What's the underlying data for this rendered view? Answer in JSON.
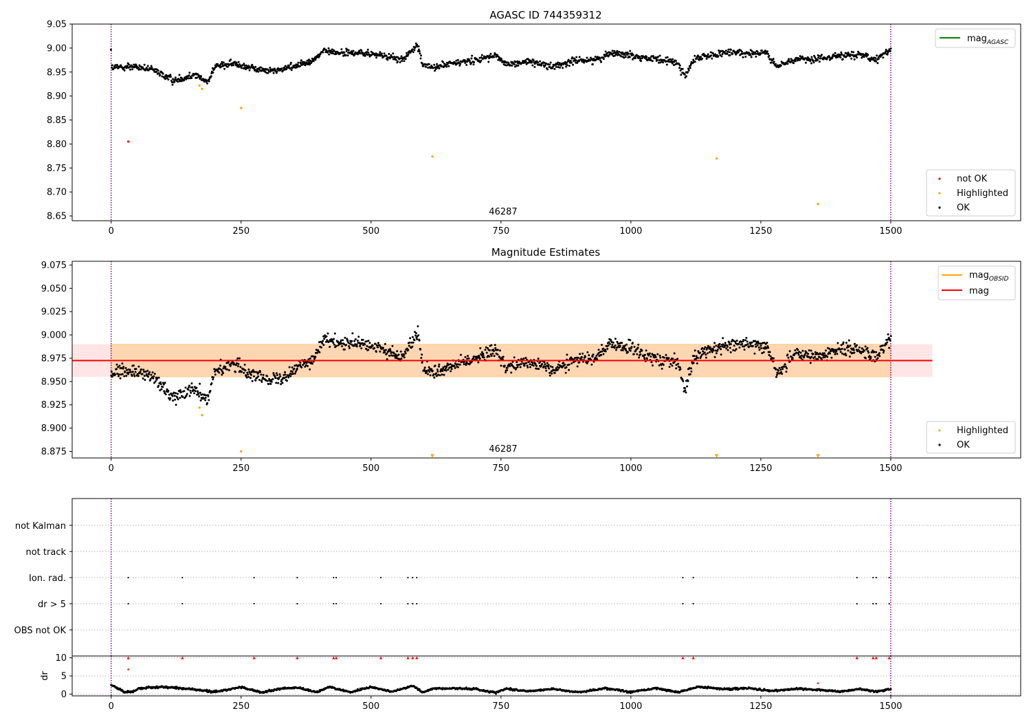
{
  "chart_data": [
    {
      "type": "scatter",
      "title": "AGASC ID 744359312",
      "xlim": [
        -75,
        1750
      ],
      "ylim": [
        8.64,
        9.05
      ],
      "x_ticks": [
        "0",
        "250",
        "500",
        "750",
        "1000",
        "1250",
        "1500"
      ],
      "y_ticks": [
        "8.65",
        "8.70",
        "8.75",
        "8.80",
        "8.85",
        "8.90",
        "8.95",
        "9.00",
        "9.05"
      ],
      "obsid_label": "46287",
      "obsid_boundaries": [
        0,
        1500
      ],
      "legend_lines": [
        {
          "label": "mag",
          "subscript": "AGASC",
          "color": "#008000"
        }
      ],
      "legend_points": [
        {
          "label": "not OK",
          "color": "#ff0000"
        },
        {
          "label": "Highlighted",
          "color": "#ffa500"
        },
        {
          "label": "OK",
          "color": "#000000"
        }
      ],
      "series": [
        {
          "name": "not OK",
          "color": "#ff0000",
          "points": [
            [
              33,
              8.805
            ]
          ]
        },
        {
          "name": "Highlighted",
          "color": "#ffa500",
          "points": [
            [
              170,
              8.922
            ],
            [
              175,
              8.915
            ],
            [
              250,
              8.875
            ],
            [
              618,
              8.774
            ],
            [
              1165,
              8.77
            ],
            [
              1360,
              8.675
            ]
          ]
        },
        {
          "name": "OK",
          "color": "#000000",
          "trend": [
            [
              0,
              8.958
            ],
            [
              40,
              8.962
            ],
            [
              80,
              8.955
            ],
            [
              120,
              8.932
            ],
            [
              160,
              8.945
            ],
            [
              185,
              8.93
            ],
            [
              200,
              8.962
            ],
            [
              240,
              8.968
            ],
            [
              280,
              8.955
            ],
            [
              320,
              8.953
            ],
            [
              350,
              8.962
            ],
            [
              390,
              8.975
            ],
            [
              410,
              8.995
            ],
            [
              440,
              8.99
            ],
            [
              480,
              8.99
            ],
            [
              520,
              8.985
            ],
            [
              560,
              8.975
            ],
            [
              590,
              9.005
            ],
            [
              600,
              8.965
            ],
            [
              620,
              8.96
            ],
            [
              660,
              8.968
            ],
            [
              700,
              8.975
            ],
            [
              740,
              8.985
            ],
            [
              760,
              8.965
            ],
            [
              800,
              8.972
            ],
            [
              850,
              8.962
            ],
            [
              900,
              8.975
            ],
            [
              930,
              8.975
            ],
            [
              960,
              8.99
            ],
            [
              1000,
              8.985
            ],
            [
              1050,
              8.975
            ],
            [
              1090,
              8.97
            ],
            [
              1105,
              8.94
            ],
            [
              1120,
              8.975
            ],
            [
              1150,
              8.985
            ],
            [
              1200,
              8.99
            ],
            [
              1260,
              8.99
            ],
            [
              1280,
              8.96
            ],
            [
              1320,
              8.98
            ],
            [
              1350,
              8.975
            ],
            [
              1400,
              8.985
            ],
            [
              1440,
              8.985
            ],
            [
              1470,
              8.975
            ],
            [
              1500,
              8.998
            ]
          ],
          "x_range": [
            0,
            1500
          ],
          "spread": 0.007
        }
      ]
    },
    {
      "type": "scatter",
      "title": "Magnitude Estimates",
      "xlim": [
        -75,
        1750
      ],
      "ylim": [
        8.868,
        9.079
      ],
      "x_ticks": [
        "0",
        "250",
        "500",
        "750",
        "1000",
        "1250",
        "1500"
      ],
      "y_ticks": [
        "8.875",
        "8.900",
        "8.925",
        "8.950",
        "8.975",
        "9.000",
        "9.025",
        "9.050",
        "9.075"
      ],
      "obsid_label": "46287",
      "obsid_boundaries": [
        0,
        1500
      ],
      "mag": 8.9725,
      "mag_band": [
        8.955,
        8.99
      ],
      "mag_range": [
        -75,
        1580
      ],
      "mag_obsid_range": [
        0,
        1500
      ],
      "legend_lines": [
        {
          "label": "mag",
          "subscript": "OBSID",
          "color": "#ffa500"
        },
        {
          "label": "mag",
          "subscript": "",
          "color": "#ff0000"
        }
      ],
      "legend_points": [
        {
          "label": "Highlighted",
          "color": "#ffa500"
        },
        {
          "label": "OK",
          "color": "#000000"
        }
      ],
      "series": [
        {
          "name": "Highlighted",
          "color": "#ffa500",
          "points": [
            [
              170,
              8.922
            ],
            [
              175,
              8.914
            ],
            [
              250,
              8.875
            ]
          ],
          "below_range_markers": [
            618,
            1165,
            1360
          ]
        },
        {
          "name": "OK",
          "color": "#000000",
          "trend": [
            [
              0,
              8.958
            ],
            [
              40,
              8.962
            ],
            [
              80,
              8.955
            ],
            [
              120,
              8.932
            ],
            [
              160,
              8.945
            ],
            [
              185,
              8.93
            ],
            [
              200,
              8.962
            ],
            [
              240,
              8.968
            ],
            [
              280,
              8.955
            ],
            [
              320,
              8.953
            ],
            [
              350,
              8.962
            ],
            [
              390,
              8.975
            ],
            [
              410,
              8.995
            ],
            [
              440,
              8.99
            ],
            [
              480,
              8.99
            ],
            [
              520,
              8.985
            ],
            [
              560,
              8.975
            ],
            [
              590,
              9.005
            ],
            [
              600,
              8.965
            ],
            [
              620,
              8.96
            ],
            [
              660,
              8.968
            ],
            [
              700,
              8.975
            ],
            [
              740,
              8.985
            ],
            [
              760,
              8.965
            ],
            [
              800,
              8.972
            ],
            [
              850,
              8.962
            ],
            [
              900,
              8.975
            ],
            [
              930,
              8.975
            ],
            [
              960,
              8.99
            ],
            [
              1000,
              8.985
            ],
            [
              1050,
              8.975
            ],
            [
              1090,
              8.97
            ],
            [
              1105,
              8.94
            ],
            [
              1120,
              8.975
            ],
            [
              1150,
              8.985
            ],
            [
              1200,
              8.99
            ],
            [
              1260,
              8.99
            ],
            [
              1280,
              8.96
            ],
            [
              1320,
              8.98
            ],
            [
              1350,
              8.975
            ],
            [
              1400,
              8.985
            ],
            [
              1440,
              8.985
            ],
            [
              1470,
              8.975
            ],
            [
              1500,
              8.998
            ]
          ],
          "x_range": [
            0,
            1500
          ],
          "spread": 0.007
        }
      ]
    },
    {
      "type": "scatter",
      "title": "",
      "xlim": [
        -75,
        1750
      ],
      "categories": [
        "not Kalman",
        "not track",
        "Ion. rad.",
        "dr > 5",
        "OBS not OK"
      ],
      "flag_points": {
        "Ion. rad.": [
          33,
          137,
          275,
          358,
          428,
          433,
          519,
          571,
          580,
          588,
          1100,
          1120,
          1435,
          1466,
          1472,
          1497
        ],
        "dr > 5": [
          33,
          137,
          275,
          358,
          428,
          433,
          519,
          571,
          580,
          588,
          1100,
          1120,
          1435,
          1466,
          1472,
          1497
        ]
      },
      "obsid_boundaries": [
        0,
        1500
      ]
    },
    {
      "type": "scatter",
      "title": "",
      "xlim": [
        -75,
        1750
      ],
      "ylim": [
        -0.5,
        10.5
      ],
      "ylabel": "dr",
      "x_ticks": [
        "0",
        "250",
        "500",
        "750",
        "1000",
        "1250",
        "1500"
      ],
      "y_ticks": [
        "0",
        "5",
        "10"
      ],
      "obsid_boundaries": [
        0,
        1500
      ],
      "clipped_markers": [
        33,
        137,
        275,
        358,
        428,
        433,
        519,
        571,
        580,
        588,
        1100,
        1120,
        1435,
        1466,
        1472,
        1497
      ],
      "outliers": [
        [
          33,
          6.8
        ],
        [
          1360,
          3.0
        ]
      ],
      "trend": [
        [
          0,
          2.5
        ],
        [
          15,
          1.5
        ],
        [
          25,
          0.6
        ],
        [
          40,
          0.6
        ],
        [
          55,
          1.6
        ],
        [
          100,
          2.0
        ],
        [
          135,
          1.6
        ],
        [
          170,
          1.1
        ],
        [
          200,
          0.6
        ],
        [
          250,
          1.9
        ],
        [
          290,
          0.4
        ],
        [
          330,
          1.6
        ],
        [
          360,
          1.7
        ],
        [
          395,
          0.5
        ],
        [
          420,
          2.0
        ],
        [
          460,
          0.5
        ],
        [
          500,
          2.0
        ],
        [
          540,
          0.6
        ],
        [
          580,
          2.3
        ],
        [
          600,
          0.5
        ],
        [
          620,
          1.5
        ],
        [
          660,
          1.6
        ],
        [
          700,
          1.4
        ],
        [
          740,
          0.4
        ],
        [
          760,
          1.5
        ],
        [
          800,
          0.8
        ],
        [
          850,
          1.4
        ],
        [
          900,
          0.5
        ],
        [
          950,
          1.6
        ],
        [
          1000,
          0.6
        ],
        [
          1050,
          1.6
        ],
        [
          1090,
          0.5
        ],
        [
          1130,
          2.0
        ],
        [
          1180,
          1.4
        ],
        [
          1230,
          1.6
        ],
        [
          1270,
          0.8
        ],
        [
          1320,
          1.5
        ],
        [
          1360,
          1.2
        ],
        [
          1400,
          0.6
        ],
        [
          1440,
          1.4
        ],
        [
          1470,
          0.7
        ],
        [
          1500,
          1.3
        ]
      ],
      "x_range": [
        0,
        1500
      ],
      "spread": 0.25
    }
  ]
}
